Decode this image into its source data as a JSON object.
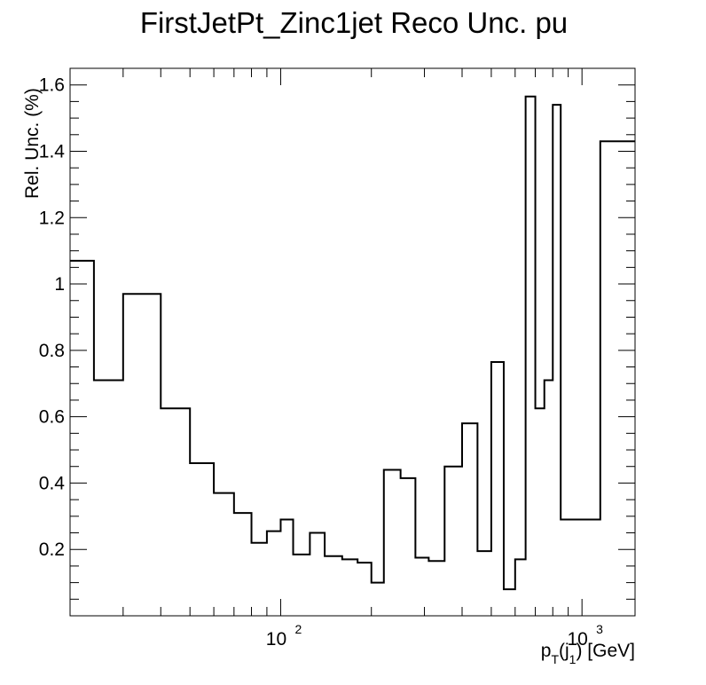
{
  "chart_data": {
    "type": "line",
    "style": "histogram-step",
    "title": "FirstJetPt_Zinc1jet Reco Unc. pu",
    "ylabel": "Rel. Unc. (%)",
    "xlabel": {
      "base": "p",
      "sub1": "T",
      "mid": "(j",
      "sub2": "1",
      "tail": ") [GeV]"
    },
    "x_scale": "log",
    "xlim": [
      20,
      1500
    ],
    "ylim": [
      0,
      1.65
    ],
    "y_ticks": [
      0.2,
      0.4,
      0.6,
      0.8,
      1.0,
      1.2,
      1.4,
      1.6
    ],
    "y_tick_labels": [
      "0.2",
      "0.4",
      "0.6",
      "0.8",
      "1",
      "1.2",
      "1.4",
      "1.6"
    ],
    "x_tick_labels": [
      {
        "value": 100,
        "base": "10",
        "exp": "2"
      },
      {
        "value": 1000,
        "base": "10",
        "exp": "3"
      }
    ],
    "grid": false,
    "line_color": "#000000",
    "bin_edges": [
      20,
      24,
      30,
      40,
      50,
      60,
      70,
      80,
      90,
      100,
      110,
      125,
      140,
      160,
      180,
      200,
      220,
      250,
      280,
      310,
      350,
      400,
      450,
      500,
      550,
      600,
      650,
      700,
      750,
      800,
      850,
      1150,
      1500
    ],
    "values": [
      1.07,
      0.71,
      0.97,
      0.625,
      0.46,
      0.37,
      0.31,
      0.22,
      0.255,
      0.29,
      0.185,
      0.25,
      0.18,
      0.17,
      0.16,
      0.1,
      0.44,
      0.415,
      0.175,
      0.165,
      0.45,
      0.58,
      0.195,
      0.765,
      0.08,
      0.17,
      1.565,
      0.625,
      0.71,
      1.54,
      0.29,
      1.43
    ]
  }
}
